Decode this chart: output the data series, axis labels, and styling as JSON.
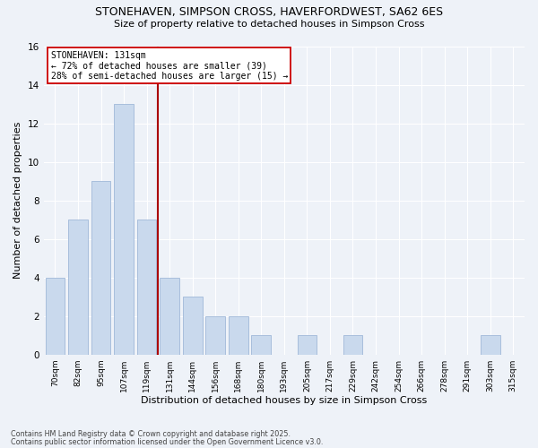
{
  "title1": "STONEHAVEN, SIMPSON CROSS, HAVERFORDWEST, SA62 6ES",
  "title2": "Size of property relative to detached houses in Simpson Cross",
  "xlabel": "Distribution of detached houses by size in Simpson Cross",
  "ylabel": "Number of detached properties",
  "categories": [
    "70sqm",
    "82sqm",
    "95sqm",
    "107sqm",
    "119sqm",
    "131sqm",
    "144sqm",
    "156sqm",
    "168sqm",
    "180sqm",
    "193sqm",
    "205sqm",
    "217sqm",
    "229sqm",
    "242sqm",
    "254sqm",
    "266sqm",
    "278sqm",
    "291sqm",
    "303sqm",
    "315sqm"
  ],
  "values": [
    4,
    7,
    9,
    13,
    7,
    4,
    3,
    2,
    2,
    1,
    0,
    1,
    0,
    1,
    0,
    0,
    0,
    0,
    0,
    1,
    0
  ],
  "bar_color": "#c9d9ed",
  "bar_edge_color": "#a0b8d8",
  "vline_x": 4.5,
  "vline_color": "#aa0000",
  "annotation_text": "STONEHAVEN: 131sqm\n← 72% of detached houses are smaller (39)\n28% of semi-detached houses are larger (15) →",
  "annotation_box_color": "#ffffff",
  "annotation_box_edge": "#cc0000",
  "ylim": [
    0,
    16
  ],
  "yticks": [
    0,
    2,
    4,
    6,
    8,
    10,
    12,
    14,
    16
  ],
  "footer1": "Contains HM Land Registry data © Crown copyright and database right 2025.",
  "footer2": "Contains public sector information licensed under the Open Government Licence v3.0.",
  "bg_color": "#eef2f8",
  "grid_color": "#ffffff"
}
